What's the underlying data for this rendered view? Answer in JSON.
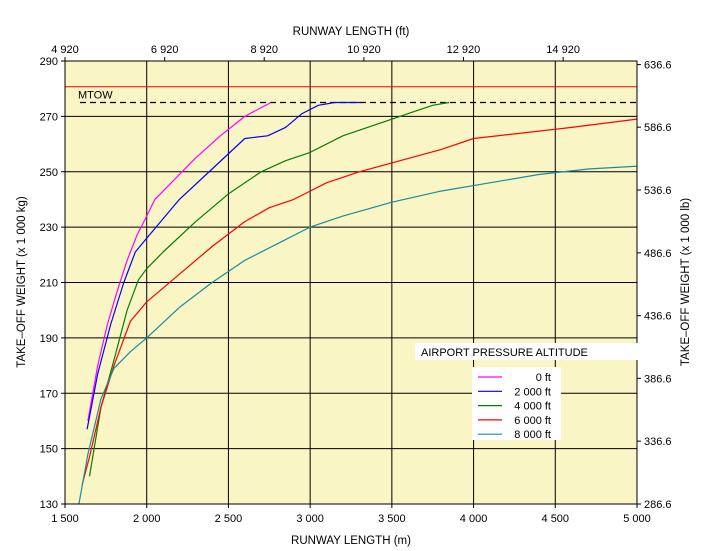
{
  "chart_data": {
    "type": "line",
    "xlabel": "RUNWAY LENGTH (m)",
    "x2label": "RUNWAY LENGTH (ft)",
    "ylabel": "TAKE–OFF WEIGHT (x 1 000 kg)",
    "y2label": "TAKE–OFF WEIGHT (x 1 000 lb)",
    "xlim": [
      1500,
      5000
    ],
    "ylim": [
      130,
      290
    ],
    "x_ticks": [
      {
        "value": 1500,
        "label": "1 500"
      },
      {
        "value": 2000,
        "label": "2 000"
      },
      {
        "value": 2500,
        "label": "2 500"
      },
      {
        "value": 3000,
        "label": "3 000"
      },
      {
        "value": 3500,
        "label": "3 500"
      },
      {
        "value": 4000,
        "label": "4 000"
      },
      {
        "value": 4500,
        "label": "4 500"
      },
      {
        "value": 5000,
        "label": "5 000"
      }
    ],
    "y_ticks": [
      {
        "value": 130,
        "label": "130"
      },
      {
        "value": 150,
        "label": "150"
      },
      {
        "value": 170,
        "label": "170"
      },
      {
        "value": 190,
        "label": "190"
      },
      {
        "value": 210,
        "label": "210"
      },
      {
        "value": 230,
        "label": "230"
      },
      {
        "value": 250,
        "label": "250"
      },
      {
        "value": 270,
        "label": "270"
      },
      {
        "value": 290,
        "label": "290"
      }
    ],
    "x2_ticks": [
      {
        "value": 1500,
        "label": "4 920"
      },
      {
        "value": 2110,
        "label": "6 920"
      },
      {
        "value": 2719,
        "label": "8 920"
      },
      {
        "value": 3329,
        "label": "10 920"
      },
      {
        "value": 3938,
        "label": "12 920"
      },
      {
        "value": 4548,
        "label": "14 920"
      }
    ],
    "y2_ticks": [
      {
        "value": 130,
        "label": "286.6"
      },
      {
        "value": 152.7,
        "label": "336.6"
      },
      {
        "value": 175.4,
        "label": "386.6"
      },
      {
        "value": 198.0,
        "label": "436.6"
      },
      {
        "value": 220.7,
        "label": "486.6"
      },
      {
        "value": 243.4,
        "label": "536.6"
      },
      {
        "value": 266.1,
        "label": "586.6"
      },
      {
        "value": 288.7,
        "label": "636.6"
      }
    ],
    "grid": true,
    "colors": {
      "plot_bg": "#FAF5C4",
      "grid": "#000000",
      "mtow_line": "#FF0000",
      "mtow_dash": "#000000"
    },
    "mtow": {
      "label": "MTOW",
      "value": 280.7,
      "dashed_value": 275.0
    },
    "legend": {
      "title": "AIRPORT PRESSURE ALTITUDE",
      "placement": "lower-right"
    },
    "series": [
      {
        "name": "0 ft",
        "color": "#FF00FF",
        "x": [
          1640,
          1700,
          1760,
          1820,
          1880,
          1940,
          2000,
          2050,
          2150,
          2300,
          2450,
          2600,
          2760
        ],
        "y": [
          160,
          180,
          195,
          207,
          218,
          227,
          234,
          240,
          246,
          255,
          263,
          270,
          275
        ]
      },
      {
        "name": "2 000 ft",
        "color": "#0000FF",
        "x": [
          1635,
          1700,
          1780,
          1860,
          1930,
          2000,
          2100,
          2200,
          2400,
          2600,
          2740,
          2850,
          2950,
          3050,
          3150,
          3250,
          3310
        ],
        "y": [
          157,
          177,
          195,
          210,
          221,
          226,
          233,
          240,
          251,
          262,
          263,
          266,
          271,
          274,
          275,
          275,
          275
        ]
      },
      {
        "name": "4 000 ft",
        "color": "#008000",
        "x": [
          1650,
          1720,
          1800,
          1880,
          1950,
          2000,
          2100,
          2300,
          2500,
          2700,
          2850,
          3000,
          3200,
          3400,
          3600,
          3750,
          3850
        ],
        "y": [
          140,
          165,
          182,
          200,
          211,
          215,
          221,
          232,
          242,
          250,
          254,
          257,
          263,
          267,
          271,
          274,
          275
        ]
      },
      {
        "name": "6 000 ft",
        "color": "#FF0000",
        "x": [
          1605,
          1650,
          1720,
          1800,
          1850,
          1900,
          2000,
          2200,
          2400,
          2600,
          2750,
          2900,
          3000,
          3100,
          3300,
          3550,
          3800,
          4000,
          4300,
          4600,
          5000
        ],
        "y": [
          137,
          147,
          165,
          180,
          188,
          196,
          203,
          213,
          223,
          232,
          237,
          240,
          243,
          246,
          250,
          254,
          258,
          262,
          264,
          266,
          269
        ]
      },
      {
        "name": "8 000 ft",
        "color": "#1A8CA0",
        "x": [
          1585,
          1640,
          1720,
          1800,
          1900,
          2000,
          2200,
          2400,
          2600,
          2800,
          3000,
          3200,
          3500,
          3800,
          4100,
          4400,
          4700,
          5000
        ],
        "y": [
          130,
          148,
          168,
          179,
          185,
          190,
          201,
          210,
          218,
          224,
          230,
          234,
          239,
          243,
          246,
          249,
          251,
          252
        ]
      }
    ]
  }
}
